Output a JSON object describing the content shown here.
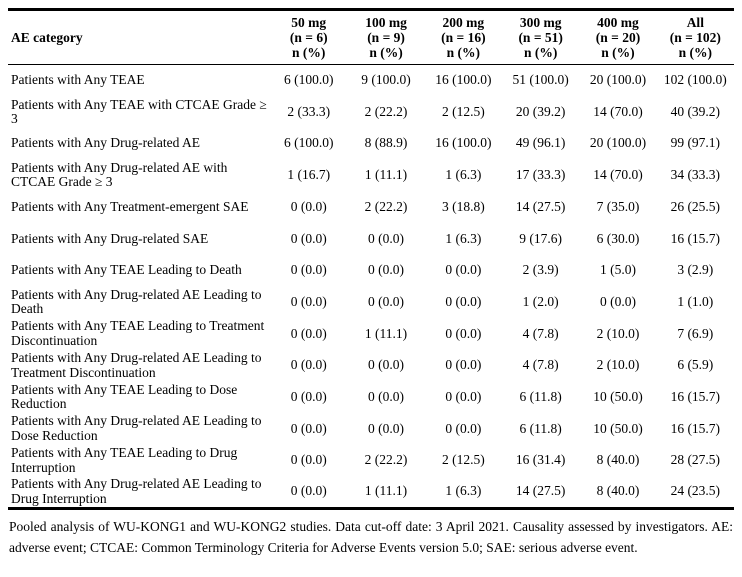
{
  "table": {
    "header": {
      "category_label": "AE category",
      "columns": [
        {
          "text": "50 mg\n(n = 6)\nn (%)"
        },
        {
          "text": "100 mg\n(n = 9)\nn (%)"
        },
        {
          "text": "200 mg\n(n = 16)\nn (%)"
        },
        {
          "text": "300 mg\n(n = 51)\nn (%)"
        },
        {
          "text": "400 mg\n(n = 20)\nn (%)"
        },
        {
          "text": "All\n(n = 102)\nn (%)"
        }
      ]
    },
    "rows": [
      {
        "label": "Patients with Any TEAE",
        "values": [
          "6 (100.0)",
          "9 (100.0)",
          "16 (100.0)",
          "51 (100.0)",
          "20 (100.0)",
          "102 (100.0)"
        ]
      },
      {
        "label": "Patients with Any TEAE with CTCAE Grade ≥ 3",
        "values": [
          "2 (33.3)",
          "2 (22.2)",
          "2 (12.5)",
          "20 (39.2)",
          "14 (70.0)",
          "40 (39.2)"
        ]
      },
      {
        "label": "Patients with Any Drug-related AE",
        "values": [
          "6 (100.0)",
          "8 (88.9)",
          "16 (100.0)",
          "49 (96.1)",
          "20 (100.0)",
          "99 (97.1)"
        ]
      },
      {
        "label": "Patients with Any Drug-related AE with CTCAE Grade ≥ 3",
        "values": [
          "1 (16.7)",
          "1 (11.1)",
          "1 (6.3)",
          "17 (33.3)",
          "14 (70.0)",
          "34 (33.3)"
        ]
      },
      {
        "label": "Patients with Any Treatment-emergent SAE",
        "values": [
          "0 (0.0)",
          "2 (22.2)",
          "3 (18.8)",
          "14 (27.5)",
          "7 (35.0)",
          "26 (25.5)"
        ]
      },
      {
        "label": "Patients with Any Drug-related SAE",
        "values": [
          "0 (0.0)",
          "0 (0.0)",
          "1 (6.3)",
          "9 (17.6)",
          "6 (30.0)",
          "16 (15.7)"
        ]
      },
      {
        "label": "Patients with Any TEAE Leading to Death",
        "values": [
          "0 (0.0)",
          "0 (0.0)",
          "0 (0.0)",
          "2 (3.9)",
          "1 (5.0)",
          "3 (2.9)"
        ]
      },
      {
        "label": "Patients with Any Drug-related AE Leading to Death",
        "values": [
          "0 (0.0)",
          "0 (0.0)",
          "0 (0.0)",
          "1 (2.0)",
          "0 (0.0)",
          "1 (1.0)"
        ]
      },
      {
        "label": "Patients with Any TEAE Leading to Treatment Discontinuation",
        "values": [
          "0 (0.0)",
          "1 (11.1)",
          "0 (0.0)",
          "4 (7.8)",
          "2 (10.0)",
          "7 (6.9)"
        ]
      },
      {
        "label": "Patients with Any Drug-related AE Leading to Treatment Discontinuation",
        "values": [
          "0 (0.0)",
          "0 (0.0)",
          "0 (0.0)",
          "4 (7.8)",
          "2 (10.0)",
          "6 (5.9)"
        ]
      },
      {
        "label": "Patients with Any TEAE Leading to Dose Reduction",
        "values": [
          "0 (0.0)",
          "0 (0.0)",
          "0 (0.0)",
          "6 (11.8)",
          "10 (50.0)",
          "16 (15.7)"
        ]
      },
      {
        "label": "Patients with Any Drug-related AE Leading to Dose Reduction",
        "values": [
          "0 (0.0)",
          "0 (0.0)",
          "0 (0.0)",
          "6 (11.8)",
          "10 (50.0)",
          "16 (15.7)"
        ]
      },
      {
        "label": "Patients with Any TEAE Leading to Drug Interruption",
        "values": [
          "0 (0.0)",
          "2 (22.2)",
          "2 (12.5)",
          "16 (31.4)",
          "8 (40.0)",
          "28 (27.5)"
        ]
      },
      {
        "label": "Patients with Any Drug-related AE Leading to Drug Interruption",
        "values": [
          "0 (0.0)",
          "1 (11.1)",
          "1 (6.3)",
          "14 (27.5)",
          "8 (40.0)",
          "24 (23.5)"
        ]
      }
    ]
  },
  "footnote": "Pooled analysis of WU-KONG1 and WU-KONG2 studies. Data cut-off date: 3 April 2021. Causality assessed by investigators. AE: adverse event; CTCAE: Common Terminology Criteria for Adverse Events version 5.0; SAE: serious adverse event.",
  "colors": {
    "text": "#000000",
    "background": "#ffffff",
    "rule": "#000000"
  }
}
